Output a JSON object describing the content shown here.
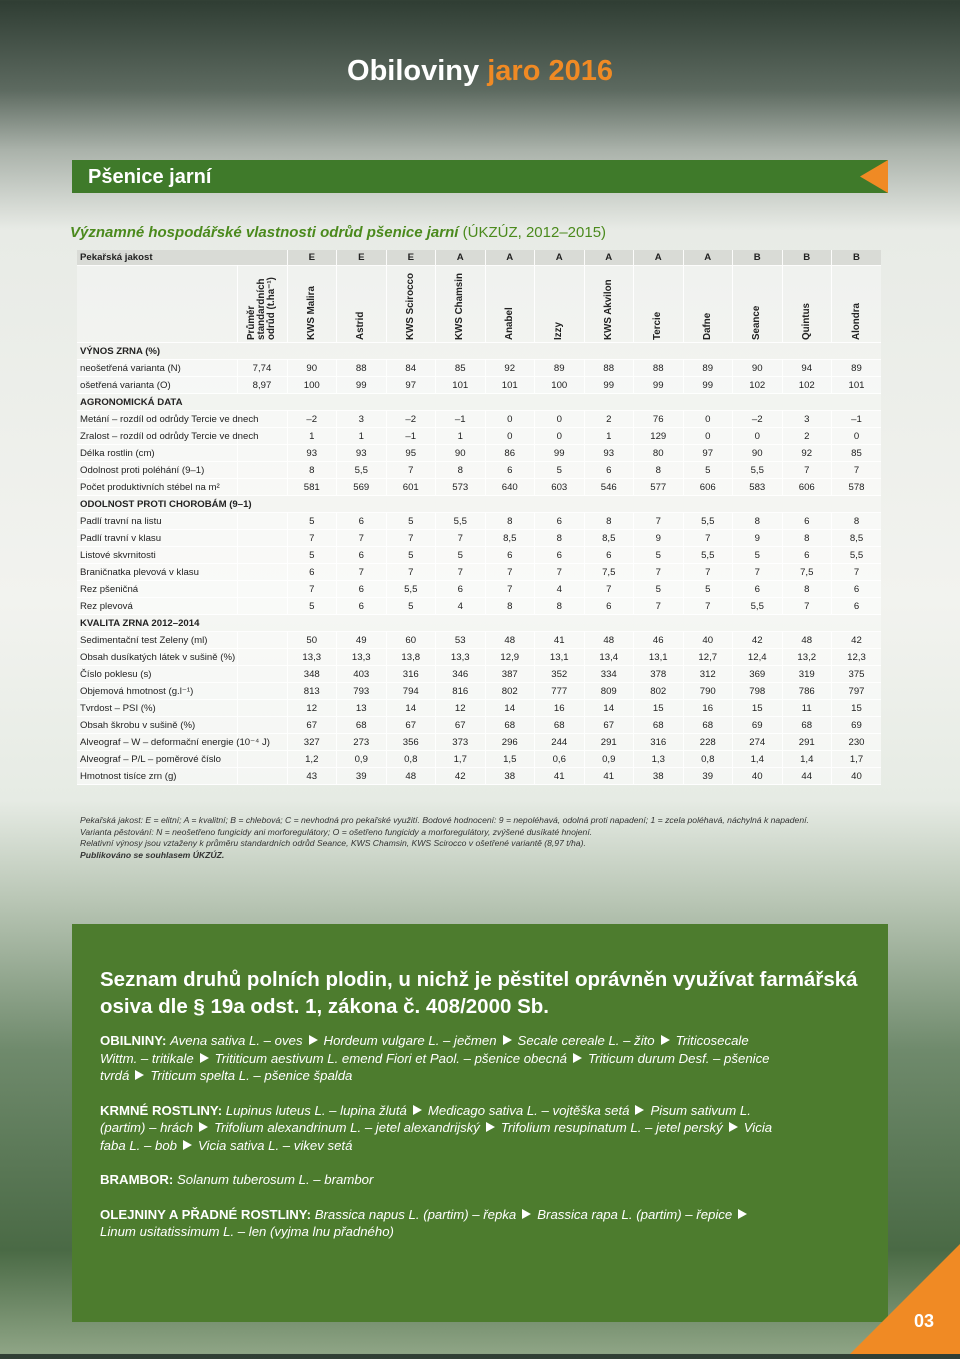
{
  "header": {
    "title_main": "Obiloviny",
    "title_accent": "jaro 2016"
  },
  "section_bar": "Pšenice jarní",
  "subtitle": {
    "main": "Významné hospodářské vlastnosti odrůd pšenice jarní",
    "source": "(ÚKZÚZ, 2012–2015)"
  },
  "table": {
    "quality_label": "Pekařská jakost",
    "quality": [
      "E",
      "E",
      "E",
      "A",
      "A",
      "A",
      "A",
      "A",
      "A",
      "B",
      "B",
      "B"
    ],
    "avg_header": "Průměr standardních odrůd (t.ha⁻¹)",
    "varieties": [
      "KWS Malira",
      "Astrid",
      "KWS Scirocco",
      "KWS Chamsin",
      "Anabel",
      "Izzy",
      "KWS Akvilon",
      "Tercie",
      "Dafne",
      "Seance",
      "Quintus",
      "Alondra"
    ],
    "sections": [
      {
        "title": "VÝNOS ZRNA (%)",
        "rows": [
          {
            "label": "neošetřená varianta (N)",
            "avg": "7,74",
            "values": [
              "90",
              "88",
              "84",
              "85",
              "92",
              "89",
              "88",
              "88",
              "89",
              "90",
              "94",
              "89"
            ]
          },
          {
            "label": "ošetřená varianta (O)",
            "avg": "8,97",
            "values": [
              "100",
              "99",
              "97",
              "101",
              "101",
              "100",
              "99",
              "99",
              "99",
              "102",
              "102",
              "101"
            ]
          }
        ]
      },
      {
        "title": "AGRONOMICKÁ DATA",
        "rows": [
          {
            "label": "Metání – rozdíl od odrůdy Tercie ve dnech",
            "values": [
              "–2",
              "3",
              "–2",
              "–1",
              "0",
              "0",
              "2",
              "76",
              "0",
              "–2",
              "3",
              "–1"
            ]
          },
          {
            "label": "Zralost – rozdíl od odrůdy Tercie ve dnech",
            "values": [
              "1",
              "1",
              "–1",
              "1",
              "0",
              "0",
              "1",
              "129",
              "0",
              "0",
              "2",
              "0"
            ]
          },
          {
            "label": "Délka rostlin (cm)",
            "values": [
              "93",
              "93",
              "95",
              "90",
              "86",
              "99",
              "93",
              "80",
              "97",
              "90",
              "92",
              "85"
            ]
          },
          {
            "label": "Odolnost proti poléhání (9–1)",
            "values": [
              "8",
              "5,5",
              "7",
              "8",
              "6",
              "5",
              "6",
              "8",
              "5",
              "5,5",
              "7",
              "7"
            ]
          },
          {
            "label": "Počet produktivních stébel na m²",
            "values": [
              "581",
              "569",
              "601",
              "573",
              "640",
              "603",
              "546",
              "577",
              "606",
              "583",
              "606",
              "578"
            ]
          }
        ]
      },
      {
        "title": "ODOLNOST PROTI CHOROBÁM (9–1)",
        "rows": [
          {
            "label": "Padlí travní na listu",
            "values": [
              "5",
              "6",
              "5",
              "5,5",
              "8",
              "6",
              "8",
              "7",
              "5,5",
              "8",
              "6",
              "8"
            ]
          },
          {
            "label": "Padlí travní v klasu",
            "values": [
              "7",
              "7",
              "7",
              "7",
              "8,5",
              "8",
              "8,5",
              "9",
              "7",
              "9",
              "8",
              "8,5"
            ]
          },
          {
            "label": "Listové skvrnitosti",
            "values": [
              "5",
              "6",
              "5",
              "5",
              "6",
              "6",
              "6",
              "5",
              "5,5",
              "5",
              "6",
              "5,5"
            ]
          },
          {
            "label": "Braničnatka plevová v klasu",
            "values": [
              "6",
              "7",
              "7",
              "7",
              "7",
              "7",
              "7,5",
              "7",
              "7",
              "7",
              "7,5",
              "7"
            ]
          },
          {
            "label": "Rez pšeničná",
            "values": [
              "7",
              "6",
              "5,5",
              "6",
              "7",
              "4",
              "7",
              "5",
              "5",
              "6",
              "8",
              "6"
            ]
          },
          {
            "label": "Rez plevová",
            "values": [
              "5",
              "6",
              "5",
              "4",
              "8",
              "8",
              "6",
              "7",
              "7",
              "5,5",
              "7",
              "6"
            ]
          }
        ]
      },
      {
        "title": "KVALITA ZRNA 2012–2014",
        "rows": [
          {
            "label": "Sedimentační test Zeleny (ml)",
            "values": [
              "50",
              "49",
              "60",
              "53",
              "48",
              "41",
              "48",
              "46",
              "40",
              "42",
              "48",
              "42"
            ]
          },
          {
            "label": "Obsah dusíkatých látek v sušině (%)",
            "values": [
              "13,3",
              "13,3",
              "13,8",
              "13,3",
              "12,9",
              "13,1",
              "13,4",
              "13,1",
              "12,7",
              "12,4",
              "13,2",
              "12,3"
            ]
          },
          {
            "label": "Číslo poklesu (s)",
            "values": [
              "348",
              "403",
              "316",
              "346",
              "387",
              "352",
              "334",
              "378",
              "312",
              "369",
              "319",
              "375"
            ]
          },
          {
            "label": "Objemová hmotnost (g.l⁻¹)",
            "values": [
              "813",
              "793",
              "794",
              "816",
              "802",
              "777",
              "809",
              "802",
              "790",
              "798",
              "786",
              "797"
            ]
          },
          {
            "label": "Tvrdost – PSI (%)",
            "values": [
              "12",
              "13",
              "14",
              "12",
              "14",
              "16",
              "14",
              "15",
              "16",
              "15",
              "11",
              "15"
            ]
          },
          {
            "label": "Obsah škrobu v sušině (%)",
            "values": [
              "67",
              "68",
              "67",
              "67",
              "68",
              "68",
              "67",
              "68",
              "68",
              "69",
              "68",
              "69"
            ]
          },
          {
            "label": "Alveograf – W – deformační energie (10⁻⁴ J)",
            "values": [
              "327",
              "273",
              "356",
              "373",
              "296",
              "244",
              "291",
              "316",
              "228",
              "274",
              "291",
              "230"
            ]
          },
          {
            "label": "Alveograf – P/L – poměrové číslo",
            "values": [
              "1,2",
              "0,9",
              "0,8",
              "1,7",
              "1,5",
              "0,6",
              "0,9",
              "1,3",
              "0,8",
              "1,4",
              "1,4",
              "1,7"
            ]
          },
          {
            "label": "Hmotnost tisíce zrn (g)",
            "values": [
              "43",
              "39",
              "48",
              "42",
              "38",
              "41",
              "41",
              "38",
              "39",
              "40",
              "44",
              "40"
            ]
          }
        ]
      }
    ]
  },
  "footnotes": [
    "Pekařská jakost: E = elitní; A = kvalitní; B = chlebová; C = nevhodná pro pekařské využití. Bodové hodnocení: 9 = nepoléhavá, odolná proti napadení; 1 = zcela poléhavá, náchylná k napadení.",
    "Varianta pěstování: N = neošetřeno fungicidy ani morforegulátory; O = ošetřeno fungicidy a morforegulátory, zvýšené dusíkaté hnojení.",
    "Relativní výnosy jsou vztaženy k průměru standardních odrůd Seance, KWS Chamsin, KWS Scirocco v ošetřené variantě (8,97 t/ha).",
    "Publikováno se souhlasem ÚKZÚZ."
  ],
  "box": {
    "title": "Seznam druhů polních plodin, u nichž je pěstitel oprávněn využívat farmářská osiva dle § 19a odst. 1, zákona č. 408/2000 Sb.",
    "groups": [
      {
        "label": "OBILNINY:",
        "items": [
          "Avena sativa L. – oves",
          "Hordeum vulgare L. – ječmen",
          "Secale cereale L. – žito",
          "Triticosecale Wittm. – tritikale",
          "Trititicum aestivum L. emend Fiori et Paol. – pšenice obecná",
          "Triticum durum Desf. – pšenice tvrdá",
          "Triticum spelta L. – pšenice špalda"
        ]
      },
      {
        "label": "KRMNÉ ROSTLINY:",
        "items": [
          "Lupinus luteus L. – lupina žlutá",
          "Medicago sativa L. – vojtěška setá",
          "Pisum sativum L. (partim) – hrách",
          "Trifolium alexandrinum L. – jetel alexandrijský",
          "Trifolium resupinatum L. – jetel perský",
          "Vicia faba L. – bob",
          "Vicia sativa L. – vikev setá"
        ]
      },
      {
        "label": "BRAMBOR:",
        "items": [
          "Solanum tuberosum L. – brambor"
        ]
      },
      {
        "label": "OLEJNINY A PŘADNÉ ROSTLINY:",
        "items": [
          "Brassica napus L. (partim) – řepka",
          "Brassica rapa L. (partim) – řepice",
          "Linum usitatissimum L. – len (vyjma lnu přadného)"
        ]
      }
    ]
  },
  "page_number": "03"
}
